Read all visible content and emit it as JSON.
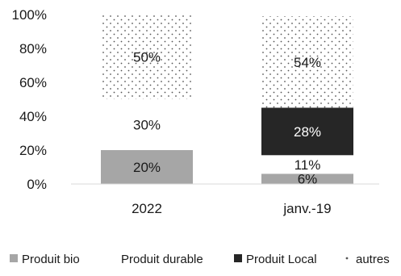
{
  "chart_data": {
    "type": "bar",
    "stacked": true,
    "categories": [
      "2022",
      "janv.-19"
    ],
    "series": [
      {
        "name": "Produit bio",
        "values": [
          20,
          6
        ],
        "labels": [
          "20%",
          "6%"
        ],
        "color": "#a6a6a6",
        "fill": "solid"
      },
      {
        "name": "Produit durable",
        "values": [
          30,
          11
        ],
        "labels": [
          "30%",
          "11%"
        ],
        "color": "#ffffff",
        "fill": "none"
      },
      {
        "name": "Produit Local",
        "values": [
          0,
          28
        ],
        "labels": [
          "",
          "28%"
        ],
        "color": "#262626",
        "fill": "solid"
      },
      {
        "name": "autres",
        "values": [
          50,
          54
        ],
        "labels": [
          "50%",
          "54%"
        ],
        "color": "#555555",
        "fill": "dots"
      }
    ],
    "ylim": [
      0,
      100
    ],
    "yticks": [
      "0%",
      "20%",
      "40%",
      "60%",
      "80%",
      "100%"
    ],
    "legend_position": "bottom",
    "grid": false
  }
}
